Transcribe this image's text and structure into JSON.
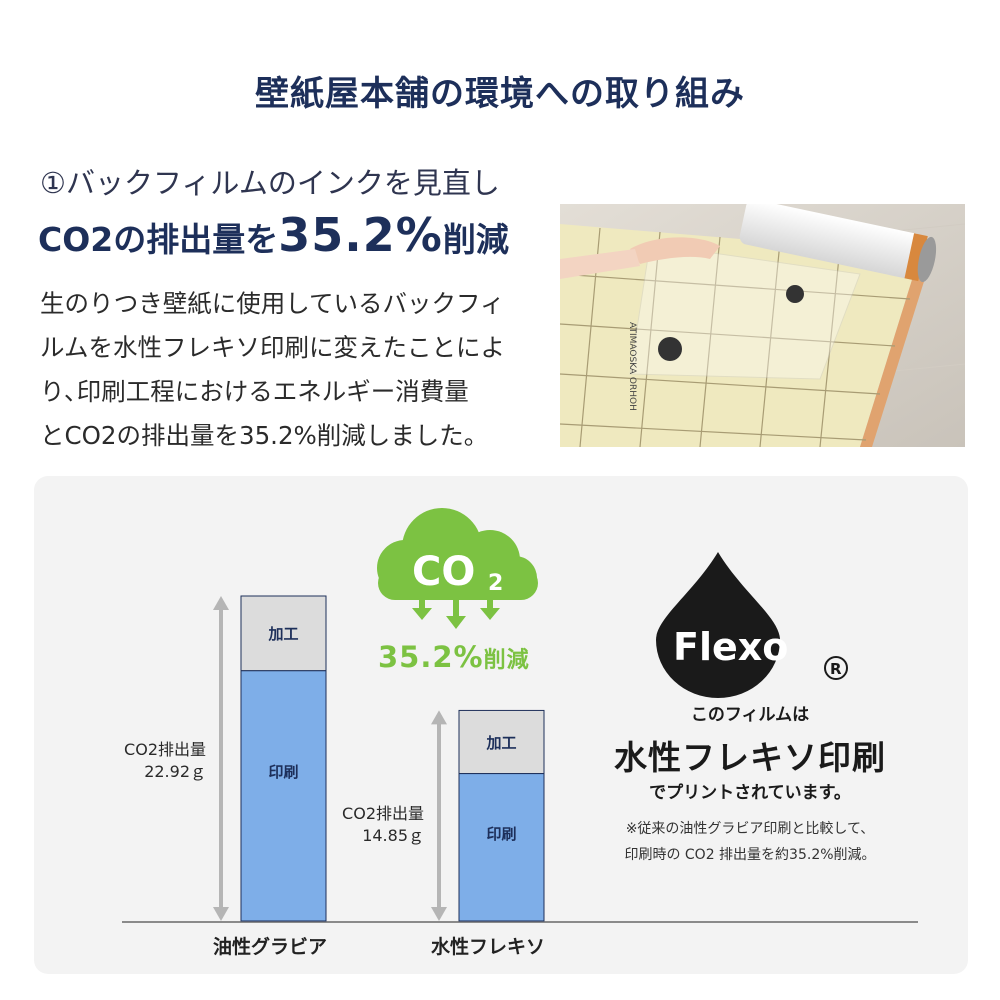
{
  "header": {
    "title": "壁紙屋本舗の環境への取り組み"
  },
  "intro": {
    "subtitle": "①バックフィルムのインクを見直し",
    "headline_prefix": "CO2の排出量を",
    "headline_value": "35.2%",
    "headline_suffix": "削減",
    "body_lines": [
      "生のりつき壁紙に使用しているバックフィ",
      "ルムを水性フレキソ印刷に変えたことによ",
      "り､印刷工程におけるエネルギー消費量",
      "とCO2の排出量を35.2%削減しました。"
    ]
  },
  "photo": {
    "print_text": "ATIMAOSKA ORHOH"
  },
  "chart_data": {
    "type": "bar",
    "stacked": true,
    "categories": [
      "油性グラビア",
      "水性フレキソ"
    ],
    "totals": [
      22.92,
      14.85
    ],
    "value_labels": [
      {
        "name": "CO2排出量",
        "value": "22.92ｇ"
      },
      {
        "name": "CO2排出量",
        "value": "14.85ｇ"
      }
    ],
    "segment_labels": [
      "加工",
      "印刷"
    ],
    "processing_share": [
      0.23,
      0.3
    ],
    "colors": {
      "print": "#7eaee8",
      "processing": "#dcdcdc",
      "outline": "#1d2f5a",
      "arrow": "#b5b5b5"
    }
  },
  "badge": {
    "co2_main": "CO",
    "co2_sub": "2",
    "reduction_value": "35.2%",
    "reduction_suffix": "削減",
    "color": "#7cc242"
  },
  "flexo": {
    "logo_text": "Flexo",
    "registered": "R",
    "line1": "このフィルムは",
    "line2": "水性フレキソ印刷",
    "line3": "でプリントされています。",
    "note1": "※従来の油性グラビア印刷と比較して、",
    "note2": "印刷時の CO2 排出量を約35.2%削減。"
  }
}
